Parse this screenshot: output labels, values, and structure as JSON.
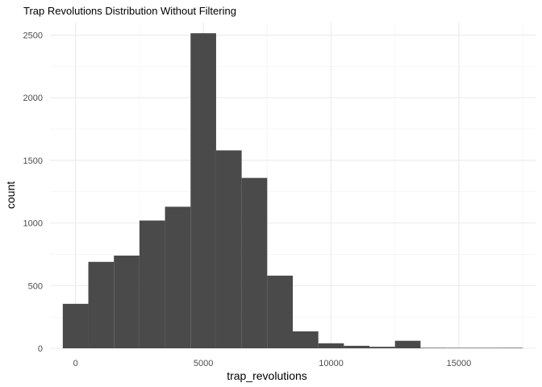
{
  "chart_data": {
    "type": "bar",
    "title": "Trap Revolutions Distribution Without Filtering",
    "xlabel": "trap_revolutions",
    "ylabel": "count",
    "xlim": [
      -1000,
      18000
    ],
    "ylim": [
      0,
      2600
    ],
    "x_ticks": [
      0,
      5000,
      10000,
      15000
    ],
    "x_tick_labels": [
      "0",
      "5000",
      "10000",
      "15000"
    ],
    "y_ticks": [
      0,
      500,
      1000,
      1500,
      2000,
      2500
    ],
    "y_tick_labels": [
      "0",
      "500",
      "1000",
      "1500",
      "2000",
      "2500"
    ],
    "bin_width": 1000,
    "bins": [
      {
        "x0": -500,
        "x1": 500,
        "count": 355
      },
      {
        "x0": 500,
        "x1": 1500,
        "count": 690
      },
      {
        "x0": 1500,
        "x1": 2500,
        "count": 740
      },
      {
        "x0": 2500,
        "x1": 3500,
        "count": 1020
      },
      {
        "x0": 3500,
        "x1": 4500,
        "count": 1130
      },
      {
        "x0": 4500,
        "x1": 5500,
        "count": 2515
      },
      {
        "x0": 5500,
        "x1": 6500,
        "count": 1580
      },
      {
        "x0": 6500,
        "x1": 7500,
        "count": 1360
      },
      {
        "x0": 7500,
        "x1": 8500,
        "count": 580
      },
      {
        "x0": 8500,
        "x1": 9500,
        "count": 135
      },
      {
        "x0": 9500,
        "x1": 10500,
        "count": 40
      },
      {
        "x0": 10500,
        "x1": 11500,
        "count": 20
      },
      {
        "x0": 11500,
        "x1": 12500,
        "count": 12
      },
      {
        "x0": 12500,
        "x1": 13500,
        "count": 60
      },
      {
        "x0": 13500,
        "x1": 14500,
        "count": 4
      },
      {
        "x0": 14500,
        "x1": 15500,
        "count": 2
      },
      {
        "x0": 15500,
        "x1": 16500,
        "count": 1
      },
      {
        "x0": 16500,
        "x1": 17500,
        "count": 4
      }
    ],
    "bar_color": "#4a4a4a",
    "grid": true,
    "legend": "none"
  }
}
